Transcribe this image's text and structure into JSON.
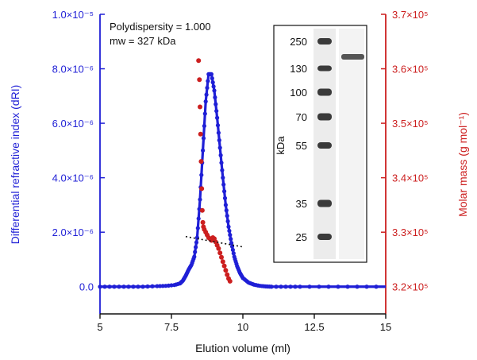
{
  "chart_data": {
    "type": "line",
    "title": "",
    "xlabel": "Elution volume (ml)",
    "ylabel_left": "Differential refractive index (dRI)",
    "ylabel_right": "Molar mass (g mol⁻¹)",
    "xlim": [
      5,
      15
    ],
    "ylim_left": [
      -1e-06,
      1e-05
    ],
    "ylim_right": [
      315000,
      370000
    ],
    "x_ticks": [
      "5",
      "7.5",
      "10",
      "12.5",
      "15"
    ],
    "x_tick_values": [
      5,
      7.5,
      10,
      12.5,
      15
    ],
    "y_left_ticks": [
      {
        "value": 0,
        "label": "0.0"
      },
      {
        "value": 2e-06,
        "label": "2.0×10⁻⁶"
      },
      {
        "value": 4e-06,
        "label": "4.0×10⁻⁶"
      },
      {
        "value": 6e-06,
        "label": "6.0×10⁻⁶"
      },
      {
        "value": 8e-06,
        "label": "8.0×10⁻⁶"
      },
      {
        "value": 1e-05,
        "label": "1.0×10⁻⁵"
      }
    ],
    "y_right_ticks": [
      {
        "value": 320000,
        "label": "3.2×10⁵"
      },
      {
        "value": 330000,
        "label": "3.3×10⁵"
      },
      {
        "value": 340000,
        "label": "3.4×10⁵"
      },
      {
        "value": 350000,
        "label": "3.5×10⁵"
      },
      {
        "value": 360000,
        "label": "3.6×10⁵"
      },
      {
        "value": 370000,
        "label": "3.7×10⁵"
      }
    ],
    "series": [
      {
        "name": "dRI",
        "axis": "left",
        "color": "#1f1fd6",
        "x": [
          5.0,
          5.5,
          6.0,
          6.5,
          7.0,
          7.3,
          7.6,
          7.8,
          7.9,
          8.0,
          8.1,
          8.2,
          8.3,
          8.4,
          8.5,
          8.6,
          8.7,
          8.8,
          8.9,
          9.0,
          9.1,
          9.2,
          9.3,
          9.4,
          9.5,
          9.6,
          9.7,
          9.8,
          9.9,
          10.0,
          10.2,
          10.4,
          10.6,
          10.8,
          11.0,
          11.5,
          12.0,
          13.0,
          14.0,
          15.0
        ],
        "y": [
          0,
          0,
          0,
          0,
          2e-08,
          3e-08,
          6e-08,
          1.2e-07,
          2.2e-07,
          4e-07,
          6.2e-07,
          8e-07,
          1.1e-06,
          1.8e-06,
          3.2e-06,
          5e-06,
          6.8e-06,
          7.8e-06,
          7.8e-06,
          7.2e-06,
          6.2e-06,
          5.1e-06,
          4e-06,
          3e-06,
          2.2e-06,
          1.6e-06,
          1.1e-06,
          7.5e-07,
          5e-07,
          3.2e-07,
          1.5e-07,
          7e-08,
          3e-08,
          1e-08,
          0,
          0,
          0,
          0,
          0,
          0
        ]
      },
      {
        "name": "Molar mass",
        "axis": "right",
        "color": "#cc1f1f",
        "x": [
          8.45,
          8.48,
          8.5,
          8.52,
          8.54,
          8.56,
          8.58,
          8.6,
          8.62,
          8.65,
          8.7,
          8.75,
          8.8,
          8.85,
          8.9,
          8.95,
          9.0,
          9.05,
          9.1,
          9.15,
          9.2,
          9.25,
          9.3,
          9.35,
          9.4,
          9.45,
          9.5,
          9.55
        ],
        "y": [
          361500,
          358000,
          353000,
          348000,
          343000,
          338000,
          334000,
          331800,
          331000,
          330500,
          330000,
          329500,
          329000,
          328800,
          328500,
          329000,
          328800,
          328200,
          327600,
          327000,
          326200,
          325400,
          324600,
          323800,
          323000,
          322200,
          321500,
          321000
        ]
      }
    ],
    "fit_line": {
      "x": [
        8.0,
        10.0
      ],
      "y_right": [
        329200,
        327300
      ],
      "style": "dotted",
      "color": "#111111"
    },
    "annotations": [
      "Polydispersity = 1.000",
      "mw = 327 kDa"
    ],
    "inset": {
      "type": "gel",
      "axis_label": "kDa",
      "ladder": [
        "250",
        "130",
        "100",
        "70",
        "55",
        "35",
        "25"
      ]
    }
  }
}
